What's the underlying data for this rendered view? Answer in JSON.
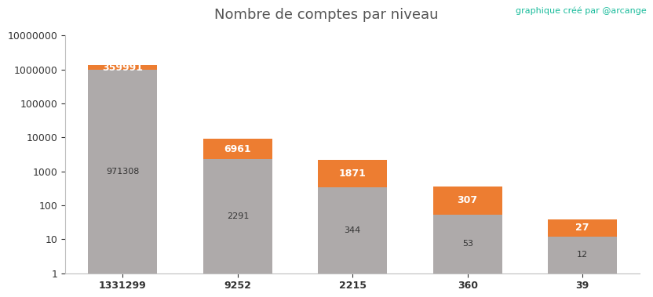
{
  "chart_data": {
    "type": "bar",
    "title": "Nombre de comptes par niveau",
    "annotations": [
      "graphique créé par @arcange"
    ],
    "categories": [
      "1331299",
      "9252",
      "2215",
      "360",
      "39"
    ],
    "stacked": true,
    "log": "y",
    "grid": false,
    "data_labels": true,
    "series": [
      {
        "color": "#aeaaaa",
        "values": [
          971308,
          2291,
          344,
          53,
          12
        ]
      },
      {
        "color": "#ed7d31",
        "values": [
          359991,
          6961,
          1871,
          307,
          27
        ]
      }
    ],
    "ylim": [
      1,
      10000000
    ],
    "yticks": [
      1,
      10,
      100,
      1000,
      10000,
      100000,
      1000000,
      10000000
    ]
  }
}
